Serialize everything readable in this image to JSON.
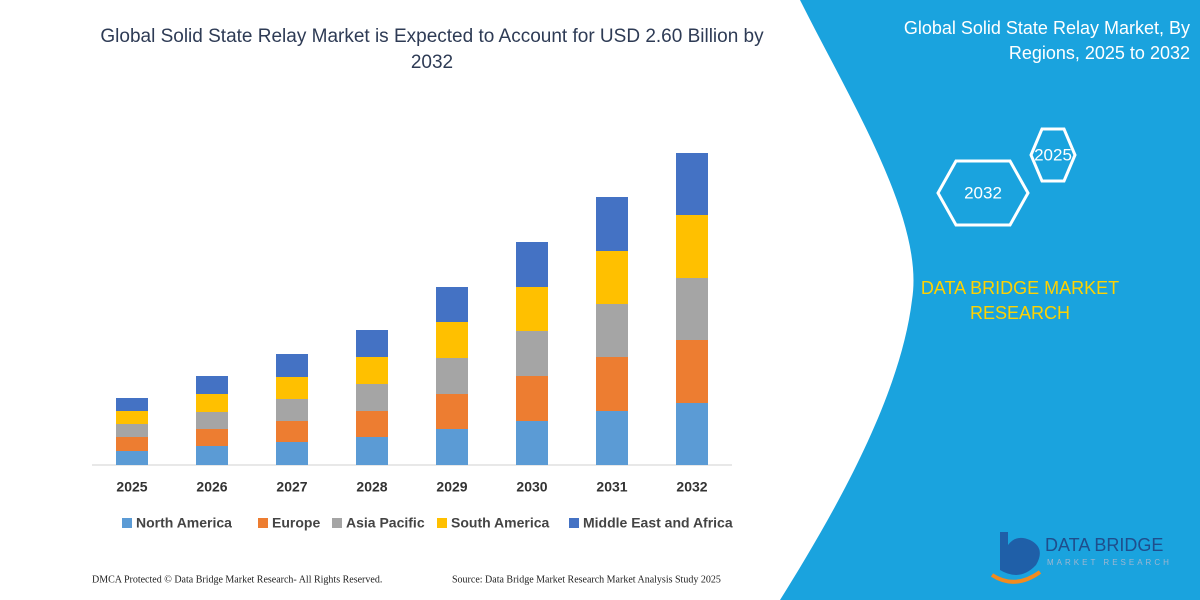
{
  "chart_data": {
    "type": "stacked-bar",
    "title": "Global Solid State Relay Market is Expected to Account for USD 2.60 Billion by 2032",
    "categories": [
      "2025",
      "2026",
      "2027",
      "2028",
      "2029",
      "2030",
      "2031",
      "2032"
    ],
    "series": [
      {
        "name": "North America",
        "color": "#5b9bd5",
        "values": [
          14,
          19,
          23,
          28,
          36,
          44,
          54,
          62
        ]
      },
      {
        "name": "Europe",
        "color": "#ed7d31",
        "values": [
          14,
          17,
          21,
          26,
          35,
          45,
          54,
          63
        ]
      },
      {
        "name": "Asia Pacific",
        "color": "#a5a5a5",
        "values": [
          13,
          17,
          22,
          27,
          36,
          45,
          53,
          62
        ]
      },
      {
        "name": "South America",
        "color": "#ffc000",
        "values": [
          13,
          18,
          22,
          27,
          36,
          44,
          53,
          63
        ]
      },
      {
        "name": "Middle East and Africa",
        "color": "#4472c4",
        "values": [
          13,
          18,
          23,
          27,
          35,
          45,
          54,
          62
        ]
      }
    ],
    "ylim": [
      0,
      320
    ]
  },
  "panel": {
    "title": "Global Solid State Relay Market, By Regions, 2025 to 2032",
    "hexagons": [
      "2025",
      "2032"
    ],
    "brand": "DATA BRIDGE MARKET RESEARCH",
    "logo": "DATA BRIDGE",
    "logo_sub": "MARKET RESEARCH"
  },
  "footer": {
    "left": "DMCA Protected © Data Bridge Market Research-  All Rights Reserved.",
    "right": "Source: Data Bridge Market Research  Market Analysis Study 2025"
  }
}
